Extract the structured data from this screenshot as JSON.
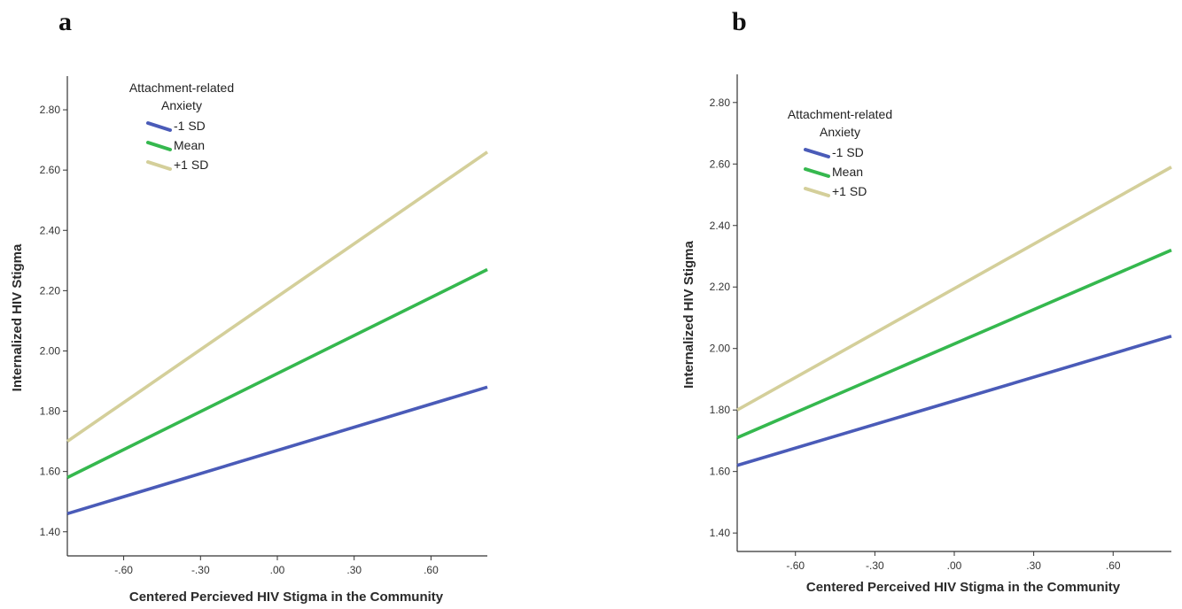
{
  "chart_data": [
    {
      "panel": "a",
      "type": "line",
      "xlabel": "Centered Percieved HIV Stigma in the Community",
      "ylabel": "Internalized HIV Stigma",
      "xlim": [
        -0.82,
        0.82
      ],
      "ylim": [
        1.32,
        2.9
      ],
      "xticks": [
        -0.6,
        -0.3,
        0.0,
        0.3,
        0.6
      ],
      "xtick_labels": [
        "-.60",
        "-.30",
        ".00",
        ".30",
        ".60"
      ],
      "yticks": [
        1.4,
        1.6,
        1.8,
        2.0,
        2.2,
        2.4,
        2.6,
        2.8
      ],
      "ytick_labels": [
        "1.40",
        "1.60",
        "1.80",
        "2.00",
        "2.20",
        "2.40",
        "2.60",
        "2.80"
      ],
      "grid": false,
      "legend": {
        "title_lines": [
          "Attachment-related",
          "Anxiety"
        ],
        "placement": "top-left"
      },
      "series": [
        {
          "name": "-1 SD",
          "color": "#4a5bb8",
          "x": [
            -0.82,
            0.82
          ],
          "y": [
            1.46,
            1.88
          ]
        },
        {
          "name": "Mean",
          "color": "#35b84e",
          "x": [
            -0.82,
            0.82
          ],
          "y": [
            1.58,
            2.27
          ]
        },
        {
          "name": "+1 SD",
          "color": "#d4cf9a",
          "x": [
            -0.82,
            0.82
          ],
          "y": [
            1.7,
            2.66
          ]
        }
      ]
    },
    {
      "panel": "b",
      "type": "line",
      "xlabel": "Centered Perceived HIV Stigma in the Community",
      "ylabel": "Internalized HIV Stigma",
      "xlim": [
        -0.82,
        0.82
      ],
      "ylim": [
        1.34,
        2.88
      ],
      "xticks": [
        -0.6,
        -0.3,
        0.0,
        0.3,
        0.6
      ],
      "xtick_labels": [
        "-.60",
        "-.30",
        ".00",
        ".30",
        ".60"
      ],
      "yticks": [
        1.4,
        1.6,
        1.8,
        2.0,
        2.2,
        2.4,
        2.6,
        2.8
      ],
      "ytick_labels": [
        "1.40",
        "1.60",
        "1.80",
        "2.00",
        "2.20",
        "2.40",
        "2.60",
        "2.80"
      ],
      "grid": false,
      "legend": {
        "title_lines": [
          "Attachment-related",
          "Anxiety"
        ],
        "placement": "top-left"
      },
      "series": [
        {
          "name": "-1 SD",
          "color": "#4a5bb8",
          "x": [
            -0.82,
            0.82
          ],
          "y": [
            1.62,
            2.04
          ]
        },
        {
          "name": "Mean",
          "color": "#35b84e",
          "x": [
            -0.82,
            0.82
          ],
          "y": [
            1.71,
            2.32
          ]
        },
        {
          "name": "+1 SD",
          "color": "#d4cf9a",
          "x": [
            -0.82,
            0.82
          ],
          "y": [
            1.8,
            2.59
          ]
        }
      ]
    }
  ]
}
